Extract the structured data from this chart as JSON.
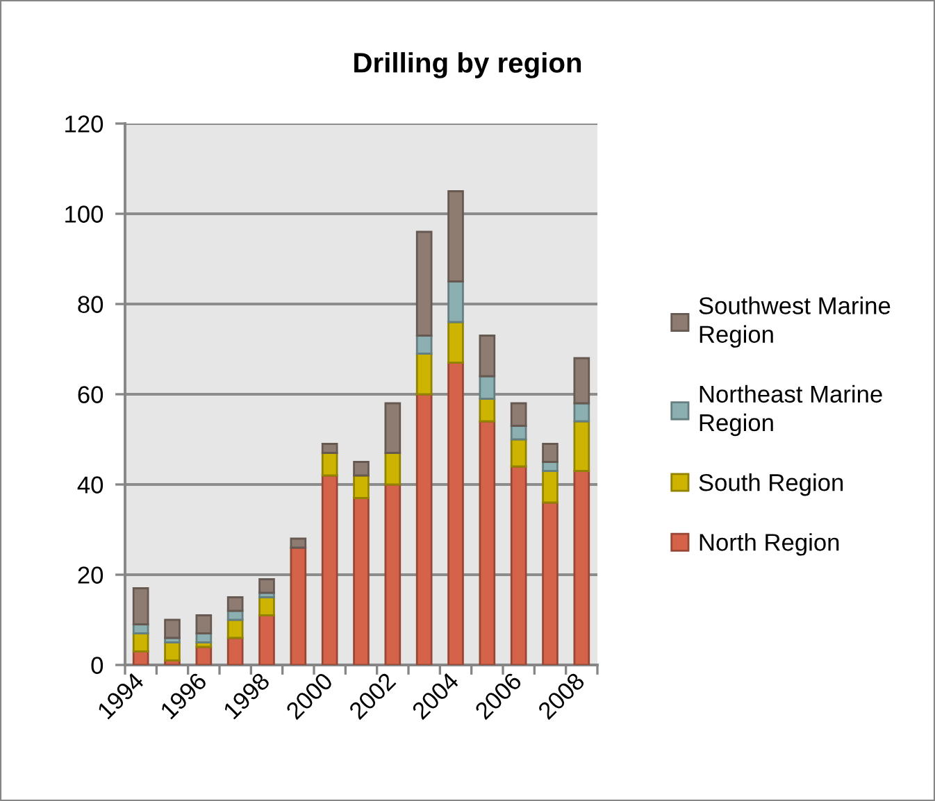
{
  "chart_data": {
    "type": "bar",
    "title": "Drilling by region",
    "stacked": true,
    "categories": [
      "1994",
      null,
      "1996",
      null,
      "1998",
      null,
      "2000",
      null,
      "2002",
      null,
      "2004",
      null,
      "2006",
      null,
      "2008"
    ],
    "series": [
      {
        "name": "North Region",
        "color": "#d4634a",
        "values": [
          3,
          1,
          4,
          6,
          11,
          26,
          42,
          37,
          40,
          60,
          67,
          54,
          44,
          36,
          43
        ]
      },
      {
        "name": "South Region",
        "color": "#ccb400",
        "values": [
          4,
          4,
          1,
          4,
          4,
          0,
          5,
          5,
          7,
          9,
          9,
          5,
          6,
          7,
          11
        ]
      },
      {
        "name": "Northeast Marine Region",
        "color": "#8cb0b2",
        "values": [
          2,
          1,
          2,
          2,
          1,
          0,
          0,
          0,
          0,
          4,
          9,
          5,
          3,
          2,
          4
        ]
      },
      {
        "name": "Southwest Marine Region",
        "color": "#8e7c72",
        "values": [
          8,
          4,
          4,
          3,
          3,
          2,
          2,
          3,
          11,
          23,
          20,
          9,
          5,
          4,
          10
        ]
      }
    ],
    "ylim": [
      0,
      120
    ],
    "yticks": [
      0,
      20,
      40,
      60,
      80,
      100,
      120
    ],
    "grid": "y",
    "legend": "right"
  }
}
